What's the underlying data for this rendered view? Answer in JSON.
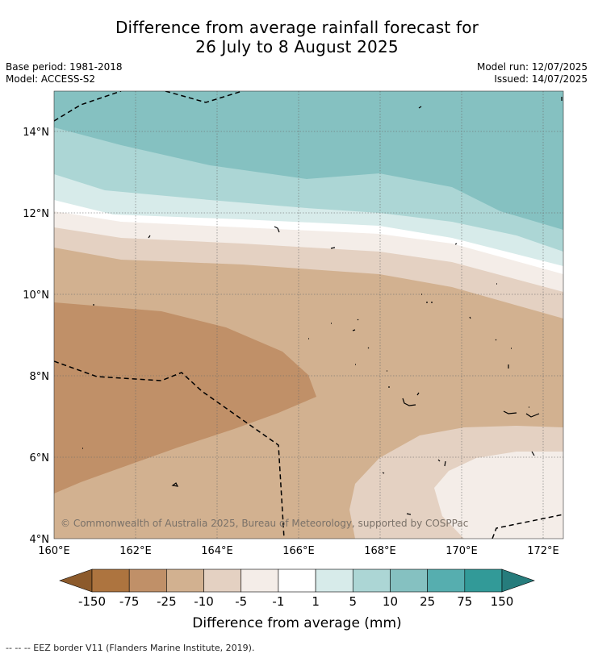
{
  "title": {
    "line1": "Difference from average rainfall forecast for",
    "line2": "26 July to 8 August 2025"
  },
  "meta": {
    "base_period": "Base period: 1981-2018",
    "model": "Model: ACCESS-S2",
    "model_run": "Model run: 12/07/2025",
    "issued": "Issued: 14/07/2025"
  },
  "map": {
    "lon_range": [
      160,
      172.5
    ],
    "lat_range": [
      4,
      15
    ],
    "x_ticks": [
      "160°E",
      "162°E",
      "164°E",
      "166°E",
      "168°E",
      "170°E",
      "172°E"
    ],
    "y_ticks": [
      "4°N",
      "6°N",
      "8°N",
      "10°N",
      "12°N",
      "14°N"
    ],
    "gridlines": true,
    "copyright": "© Commonwealth of Australia 2025, Bureau of Meteorology, supported by COSPPac"
  },
  "colorbar": {
    "labels": [
      "-150",
      "-75",
      "-25",
      "-10",
      "-5",
      "-1",
      "1",
      "5",
      "10",
      "25",
      "75",
      "150"
    ],
    "colors": [
      "#8c5a2b",
      "#ad743f",
      "#c09068",
      "#d2b190",
      "#e4d1c2",
      "#f4ede8",
      "#ffffff",
      "#d7ebea",
      "#acd6d5",
      "#85c1c1",
      "#56aeaf",
      "#329a98",
      "#267c7c"
    ],
    "title": "Difference from average (mm)"
  },
  "footnote": "--  --  -- EEZ border V11 (Flanders Marine Institute, 2019)."
}
